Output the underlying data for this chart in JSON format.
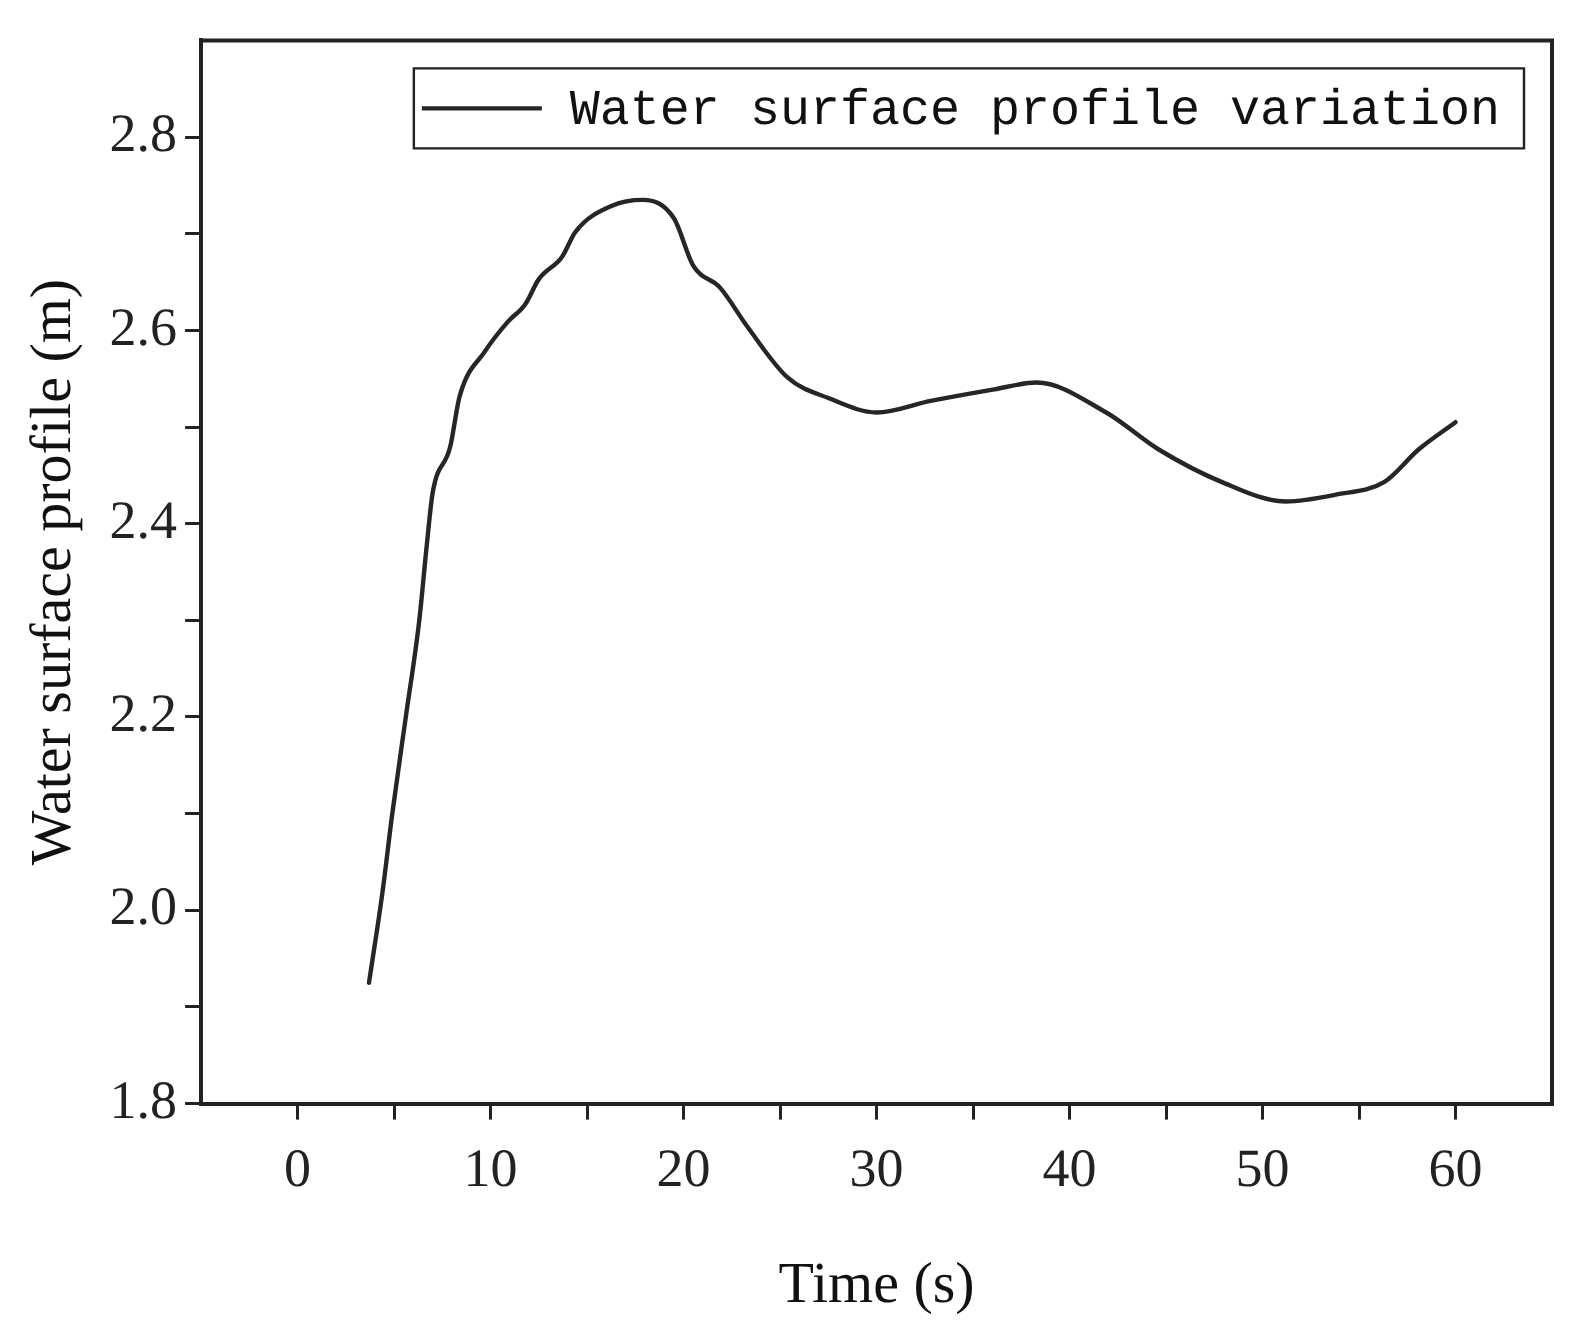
{
  "chart_data": {
    "type": "line",
    "xlabel": "Time (s)",
    "ylabel": "Water surface profile (m)",
    "x": [
      3.7,
      4.4,
      4.9,
      5.6,
      6.3,
      6.7,
      7.0,
      7.9,
      8.4,
      9.7,
      10.9,
      11.8,
      12.5,
      13.7,
      14.4,
      16.3,
      17.9,
      19.5,
      20.5,
      21.9,
      23.3,
      25.4,
      27.5,
      30.0,
      32.8,
      36.1,
      38.3,
      41.9,
      44.6,
      47.9,
      51.2,
      53.8,
      56.3,
      58.1,
      60.0
    ],
    "series": [
      {
        "name": "Water surface profile variation",
        "color": "#262626",
        "values": [
          1.925,
          2.019,
          2.099,
          2.199,
          2.299,
          2.379,
          2.432,
          2.479,
          2.532,
          2.578,
          2.609,
          2.627,
          2.653,
          2.676,
          2.702,
          2.729,
          2.735,
          2.716,
          2.667,
          2.644,
          2.604,
          2.551,
          2.53,
          2.515,
          2.527,
          2.539,
          2.546,
          2.515,
          2.477,
          2.443,
          2.423,
          2.43,
          2.443,
          2.477,
          2.505
        ]
      }
    ],
    "xlim": [
      -5,
      65
    ],
    "xticks": [
      0,
      {
        "value": 5,
        "label": null
      },
      10,
      {
        "value": 15,
        "label": null
      },
      20,
      {
        "value": 25,
        "label": null
      },
      30,
      {
        "value": 35,
        "label": null
      },
      40,
      {
        "value": 45,
        "label": null
      },
      50,
      {
        "value": 55,
        "label": null
      },
      60
    ],
    "ylim": [
      1.8,
      2.9
    ],
    "yticks": [
      1.8,
      {
        "value": 1.9,
        "label": null
      },
      {
        "value": 2.0,
        "label": "2.0"
      },
      {
        "value": 2.1,
        "label": null
      },
      2.2,
      {
        "value": 2.3,
        "label": null
      },
      2.4,
      {
        "value": 2.5,
        "label": null
      },
      2.6,
      {
        "value": 2.7,
        "label": null
      },
      2.8
    ],
    "grid": false,
    "legend": "top right",
    "marker": "none",
    "line_style": "solid"
  }
}
